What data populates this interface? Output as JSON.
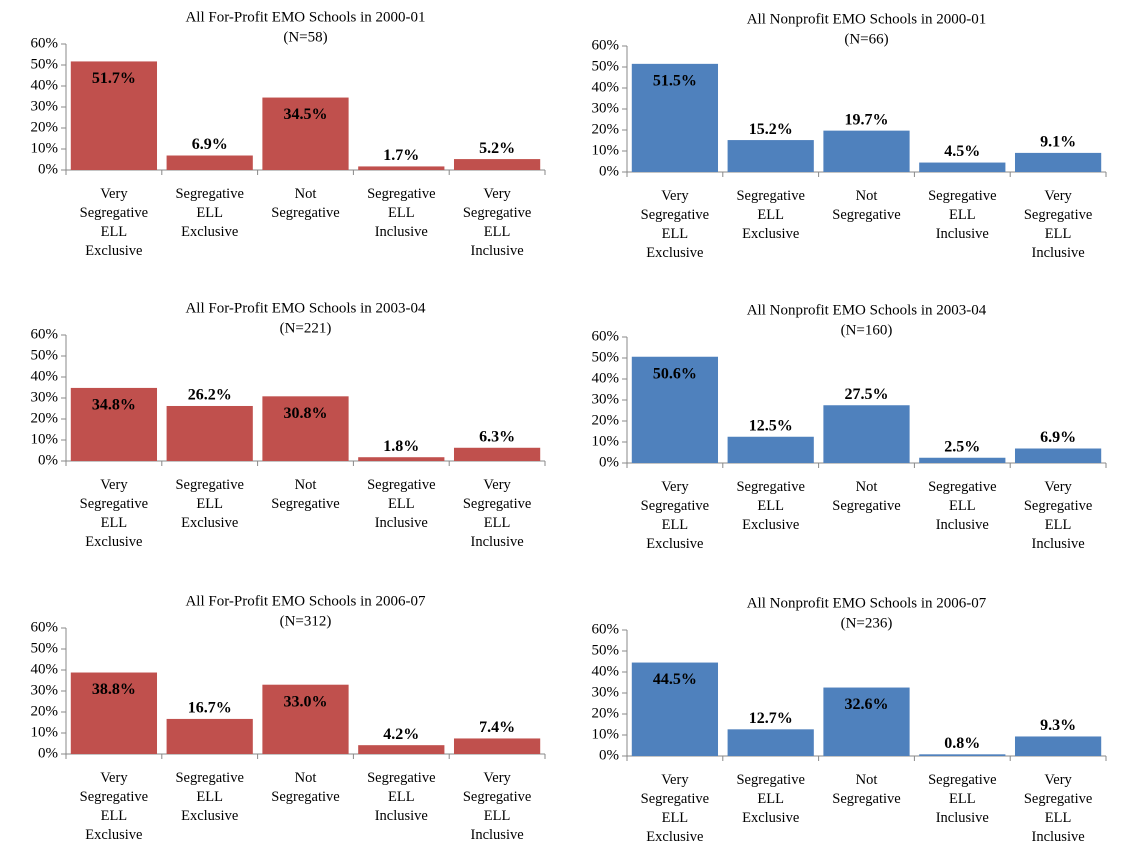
{
  "chart_data": [
    {
      "type": "bar",
      "title": "All For-Profit EMO Schools in 2000-01",
      "subtitle": "(N=58)",
      "categories": [
        "Very Segregative ELL Exclusive",
        "Segregative ELL Exclusive",
        "Not Segregative",
        "Segregative ELL Inclusive",
        "Very Segregative ELL Inclusive"
      ],
      "values": [
        51.7,
        6.9,
        34.5,
        1.7,
        5.2
      ],
      "value_labels": [
        "51.7%",
        "6.9%",
        "34.5%",
        "1.7%",
        "5.2%"
      ],
      "color": "#c0504d",
      "ylim": [
        0,
        60
      ],
      "yticks": [
        {
          "value": 0,
          "label": "0%"
        },
        {
          "value": 10,
          "label": "10%"
        },
        {
          "value": 20,
          "label": "20%"
        },
        {
          "value": 30,
          "label": "30%"
        },
        {
          "value": 40,
          "label": "40%"
        },
        {
          "value": 50,
          "label": "50%"
        },
        {
          "value": 60,
          "label": "60%"
        }
      ],
      "grid": false
    },
    {
      "type": "bar",
      "title": "All Nonprofit EMO Schools in 2000-01",
      "subtitle": "(N=66)",
      "categories": [
        "Very Segregative ELL Exclusive",
        "Segregative ELL Exclusive",
        "Not Segregative",
        "Segregative ELL Inclusive",
        "Very Segregative ELL Inclusive"
      ],
      "values": [
        51.5,
        15.2,
        19.7,
        4.5,
        9.1
      ],
      "value_labels": [
        "51.5%",
        "15.2%",
        "19.7%",
        "4.5%",
        "9.1%"
      ],
      "color": "#4f81bd",
      "ylim": [
        0,
        60
      ],
      "yticks": [
        {
          "value": 0,
          "label": "0%"
        },
        {
          "value": 10,
          "label": "10%"
        },
        {
          "value": 20,
          "label": "20%"
        },
        {
          "value": 30,
          "label": "30%"
        },
        {
          "value": 40,
          "label": "40%"
        },
        {
          "value": 50,
          "label": "50%"
        },
        {
          "value": 60,
          "label": "60%"
        }
      ],
      "grid": false
    },
    {
      "type": "bar",
      "title": "All For-Profit EMO Schools in 2003-04",
      "subtitle": "(N=221)",
      "categories": [
        "Very Segregative ELL Exclusive",
        "Segregative ELL Exclusive",
        "Not Segregative",
        "Segregative ELL Inclusive",
        "Very Segregative ELL Inclusive"
      ],
      "values": [
        34.8,
        26.2,
        30.8,
        1.8,
        6.3
      ],
      "value_labels": [
        "34.8%",
        "26.2%",
        "30.8%",
        "1.8%",
        "6.3%"
      ],
      "color": "#c0504d",
      "ylim": [
        0,
        60
      ],
      "yticks": [
        {
          "value": 0,
          "label": "0%"
        },
        {
          "value": 10,
          "label": "10%"
        },
        {
          "value": 20,
          "label": "20%"
        },
        {
          "value": 30,
          "label": "30%"
        },
        {
          "value": 40,
          "label": "40%"
        },
        {
          "value": 50,
          "label": "50%"
        },
        {
          "value": 60,
          "label": "60%"
        }
      ],
      "grid": false
    },
    {
      "type": "bar",
      "title": "All Nonprofit EMO Schools in 2003-04",
      "subtitle": "(N=160)",
      "categories": [
        "Very Segregative ELL Exclusive",
        "Segregative ELL Exclusive",
        "Not Segregative",
        "Segregative ELL Inclusive",
        "Very Segregative ELL Inclusive"
      ],
      "values": [
        50.6,
        12.5,
        27.5,
        2.5,
        6.9
      ],
      "value_labels": [
        "50.6%",
        "12.5%",
        "27.5%",
        "2.5%",
        "6.9%"
      ],
      "color": "#4f81bd",
      "ylim": [
        0,
        60
      ],
      "yticks": [
        {
          "value": 0,
          "label": "0%"
        },
        {
          "value": 10,
          "label": "10%"
        },
        {
          "value": 20,
          "label": "20%"
        },
        {
          "value": 30,
          "label": "30%"
        },
        {
          "value": 40,
          "label": "40%"
        },
        {
          "value": 50,
          "label": "50%"
        },
        {
          "value": 60,
          "label": "60%"
        }
      ],
      "grid": false
    },
    {
      "type": "bar",
      "title": "All For-Profit EMO Schools in 2006-07",
      "subtitle": "(N=312)",
      "categories": [
        "Very Segregative ELL Exclusive",
        "Segregative ELL Exclusive",
        "Not Segregative",
        "Segregative ELL Inclusive",
        "Very Segregative ELL Inclusive"
      ],
      "values": [
        38.8,
        16.7,
        33.0,
        4.2,
        7.4
      ],
      "value_labels": [
        "38.8%",
        "16.7%",
        "33.0%",
        "4.2%",
        "7.4%"
      ],
      "color": "#c0504d",
      "ylim": [
        0,
        60
      ],
      "yticks": [
        {
          "value": 0,
          "label": "0%"
        },
        {
          "value": 10,
          "label": "10%"
        },
        {
          "value": 20,
          "label": "20%"
        },
        {
          "value": 30,
          "label": "30%"
        },
        {
          "value": 40,
          "label": "40%"
        },
        {
          "value": 50,
          "label": "50%"
        },
        {
          "value": 60,
          "label": "60%"
        }
      ],
      "grid": false
    },
    {
      "type": "bar",
      "title": "All Nonprofit EMO Schools in 2006-07",
      "subtitle": "(N=236)",
      "categories": [
        "Very Segregative ELL Exclusive",
        "Segregative ELL Exclusive",
        "Not Segregative",
        "Segregative ELL Inclusive",
        "Very Segregative ELL Inclusive"
      ],
      "values": [
        44.5,
        12.7,
        32.6,
        0.8,
        9.3
      ],
      "value_labels": [
        "44.5%",
        "12.7%",
        "32.6%",
        "0.8%",
        "9.3%"
      ],
      "color": "#4f81bd",
      "ylim": [
        0,
        60
      ],
      "yticks": [
        {
          "value": 0,
          "label": "0%"
        },
        {
          "value": 10,
          "label": "10%"
        },
        {
          "value": 20,
          "label": "20%"
        },
        {
          "value": 30,
          "label": "30%"
        },
        {
          "value": 40,
          "label": "40%"
        },
        {
          "value": 50,
          "label": "50%"
        },
        {
          "value": 60,
          "label": "60%"
        }
      ],
      "grid": false
    }
  ]
}
